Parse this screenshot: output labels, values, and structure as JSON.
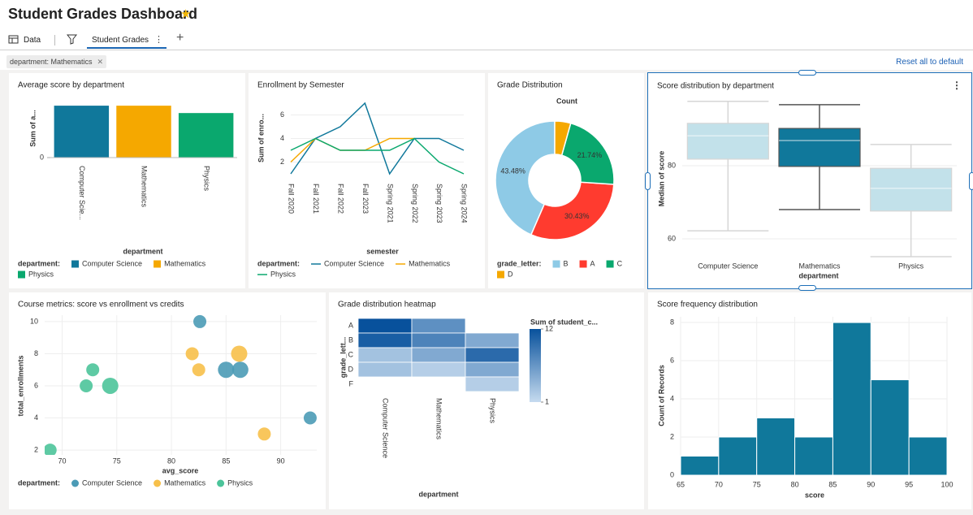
{
  "header": {
    "title": "Student Grades Dashboard",
    "tabs": [
      "Data",
      "Student Grades"
    ],
    "filter": "department: Mathematics",
    "reset": "Reset all to default"
  },
  "chart_data": [
    {
      "type": "bar",
      "title": "Average score by department",
      "x_label": "department",
      "y_label": "Sum of a...",
      "categories": [
        "Computer Scie...",
        "Mathematics",
        "Physics"
      ],
      "values": [
        950,
        950,
        815
      ],
      "colors": [
        "#10789b",
        "#f5a800",
        "#0aa86e"
      ],
      "ylim": [
        0,
        1100
      ],
      "yticks": [
        0
      ],
      "legend_title": "department:",
      "legend_labels": [
        "Computer Science",
        "Mathematics",
        "Physics"
      ]
    },
    {
      "type": "line",
      "title": "Enrollment by Semester",
      "x_label": "semester",
      "y_label": "Sum of enro...",
      "categories": [
        "Fall 2020",
        "Fall 2021",
        "Fall 2022",
        "Fall 2023",
        "Spring 2021",
        "Spring 2022",
        "Spring 2023",
        "Spring 2024"
      ],
      "series": [
        {
          "name": "Computer Science",
          "color": "#10789b",
          "values": [
            1,
            4,
            5,
            7,
            1,
            4,
            4,
            3
          ]
        },
        {
          "name": "Mathematics",
          "color": "#f5a800",
          "values": [
            2,
            4,
            3,
            3,
            4,
            4,
            null,
            null
          ]
        },
        {
          "name": "Physics",
          "color": "#0aa86e",
          "values": [
            3,
            4,
            3,
            3,
            3,
            4,
            2,
            1
          ]
        }
      ],
      "ylim": [
        1,
        7
      ],
      "yticks": [
        2,
        4,
        6
      ],
      "grid": true,
      "legend_title": "department:"
    },
    {
      "type": "pie",
      "title": "Grade Distribution",
      "subtitle": "Count",
      "categories": [
        "B",
        "A",
        "C",
        "D"
      ],
      "values": [
        43.48,
        30.43,
        21.74,
        4.35
      ],
      "value_labels": [
        "43.48%",
        "30.43%",
        "21.74%",
        null
      ],
      "colors": [
        "#8ecae6",
        "#ff3b2f",
        "#0aa86e",
        "#f5a800"
      ],
      "legend_title": "grade_letter:"
    },
    {
      "type": "box",
      "title": "Score distribution by department",
      "x_label": "department",
      "y_label": "Median of score",
      "categories": [
        "Computer Science",
        "Mathematics",
        "Physics"
      ],
      "whisker_low": [
        62.2,
        68,
        55.1
      ],
      "q1": [
        81.8,
        79.8,
        67.6
      ],
      "median": [
        88.2,
        86.9,
        73.8
      ],
      "q3": [
        91.6,
        90.2,
        79.3
      ],
      "whisker_high": [
        97.6,
        96.7,
        85.8
      ],
      "colors": [
        "#c2e1ea",
        "#10789b",
        "#c2e1ea"
      ],
      "line_colors": [
        "#d6d6d6",
        "#555555",
        "#d6d6d6"
      ],
      "ylim": [
        54,
        99
      ],
      "yticks": [
        60,
        80
      ],
      "grid": true
    },
    {
      "type": "scatter",
      "title": "Course metrics: score vs enrollment vs credits",
      "x_label": "avg_score",
      "y_label": "total_enrollments",
      "series": [
        {
          "name": "Computer Science",
          "color": "#4b9bb6",
          "x": [
            82.6,
            85.0,
            86.3,
            92.7
          ],
          "y": [
            10,
            7,
            7,
            4
          ],
          "size": [
            3,
            4,
            4,
            3
          ]
        },
        {
          "name": "Mathematics",
          "color": "#f7c04a",
          "x": [
            81.9,
            82.5,
            86.2,
            88.5
          ],
          "y": [
            8,
            7,
            8,
            3
          ],
          "size": [
            3,
            3,
            4,
            3
          ]
        },
        {
          "name": "Physics",
          "color": "#4cc49a",
          "x": [
            68.9,
            72.2,
            72.8,
            74.4
          ],
          "y": [
            2,
            6,
            7,
            6
          ],
          "size": [
            3,
            3,
            3,
            4
          ]
        }
      ],
      "xlim": [
        68.4,
        93.3
      ],
      "ylim": [
        1.7,
        10.4
      ],
      "xticks": [
        70,
        75,
        80,
        85,
        90
      ],
      "yticks": [
        2,
        4,
        6,
        8,
        10
      ],
      "grid": true,
      "legend_title": "department:"
    },
    {
      "type": "heatmap",
      "title": "Grade distribution heatmap",
      "x_label": "department",
      "y_label": "grade_lett...",
      "x_categories": [
        "Computer Science",
        "Mathematics",
        "Physics"
      ],
      "y_categories": [
        "A",
        "B",
        "C",
        "D",
        "F"
      ],
      "values": [
        [
          12,
          7,
          null
        ],
        [
          11,
          8,
          5
        ],
        [
          3,
          5,
          10
        ],
        [
          3,
          2,
          5
        ],
        [
          null,
          null,
          2
        ]
      ],
      "clim": [
        1,
        12
      ],
      "cticks": [
        1,
        12
      ],
      "colorbar_title": "Sum of student_c...",
      "color_range": [
        "#c6dbef",
        "#08519c"
      ]
    },
    {
      "type": "histogram",
      "title": "Score frequency distribution",
      "x_label": "score",
      "y_label": "Count of Records",
      "bins": [
        65,
        70,
        75,
        80,
        85,
        90,
        95,
        100
      ],
      "values": [
        1,
        2,
        3,
        2,
        8,
        5,
        2
      ],
      "color": "#10789b",
      "xlim": [
        65,
        100
      ],
      "ylim": [
        0,
        8.3
      ],
      "xticks": [
        65,
        70,
        75,
        80,
        85,
        90,
        95,
        100
      ],
      "yticks": [
        0,
        2,
        4,
        6,
        8
      ],
      "grid": true
    }
  ]
}
